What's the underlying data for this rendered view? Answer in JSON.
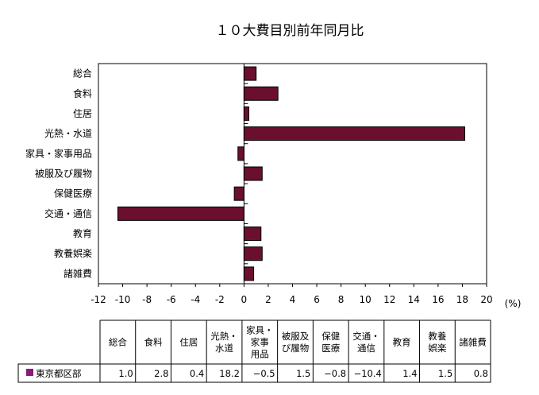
{
  "chart_data": {
    "type": "bar",
    "orientation": "horizontal",
    "title": "１０大費目別前年同月比",
    "unit_label": "(%)",
    "categories": [
      "総合",
      "食料",
      "住居",
      "光熱・水道",
      "家具・家事用品",
      "被服及び履物",
      "保健医療",
      "交通・通信",
      "教育",
      "教養娯楽",
      "諸雑費"
    ],
    "table_headers": [
      [
        "総合"
      ],
      [
        "食料"
      ],
      [
        "住居"
      ],
      [
        "光熱・",
        "水道"
      ],
      [
        "家具・",
        "家事",
        "用品"
      ],
      [
        "被服及",
        "び履物"
      ],
      [
        "保健",
        "医療"
      ],
      [
        "交通・",
        "通信"
      ],
      [
        "教育"
      ],
      [
        "教養",
        "娯楽"
      ],
      [
        "諸雑費"
      ]
    ],
    "series": [
      {
        "name": "東京都区部",
        "values": [
          1.0,
          2.8,
          0.4,
          18.2,
          -0.5,
          1.5,
          -0.8,
          -10.4,
          1.4,
          1.5,
          0.8
        ],
        "labels": [
          "1.0",
          "2.8",
          "0.4",
          "18.2",
          "−0.5",
          "1.5",
          "−0.8",
          "−10.4",
          "1.4",
          "1.5",
          "0.8"
        ]
      }
    ],
    "xlim": [
      -12,
      20
    ],
    "xticks": [
      -12,
      -10,
      -8,
      -6,
      -4,
      -2,
      0,
      2,
      4,
      6,
      8,
      10,
      12,
      14,
      16,
      18,
      20
    ],
    "grid": false,
    "colors": {
      "bar": "#6b0f2f",
      "legend_marker": "#8b1a7a"
    }
  }
}
